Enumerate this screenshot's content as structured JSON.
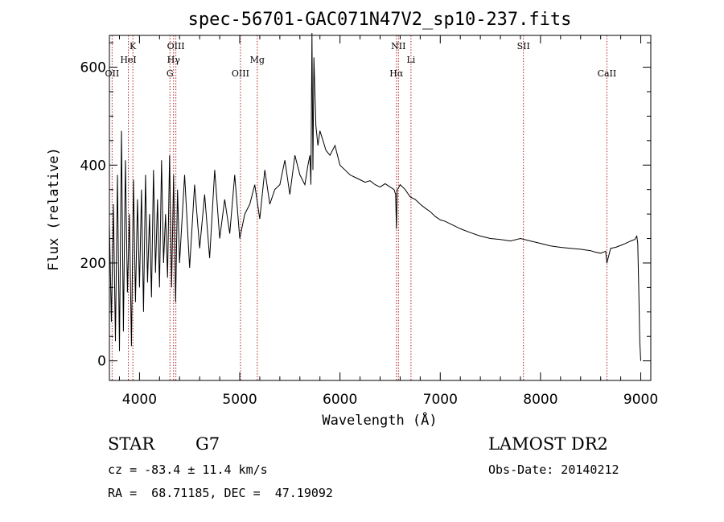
{
  "chart_data": {
    "type": "line",
    "title": "spec-56701-GAC071N47V2_sp10-237.fits",
    "xlabel": "Wavelength (Å)",
    "ylabel": "Flux (relative)",
    "xlim": [
      3700,
      9100
    ],
    "ylim": [
      -40,
      665
    ],
    "xticks": [
      4000,
      5000,
      6000,
      7000,
      8000,
      9000
    ],
    "yticks": [
      0,
      200,
      400,
      600
    ],
    "grid": false,
    "legend": "none",
    "line_color": "#000000",
    "marker_color": "#b22222",
    "spectral_lines": [
      {
        "label": "OII",
        "wavelength": 3727,
        "row": 3
      },
      {
        "label": "K",
        "wavelength": 3934,
        "row": 1
      },
      {
        "label": "HeI",
        "wavelength": 3889,
        "row": 2
      },
      {
        "label": "OIII",
        "wavelength": 4363,
        "row": 1
      },
      {
        "label": "Hγ",
        "wavelength": 4340,
        "row": 2
      },
      {
        "label": "G",
        "wavelength": 4304,
        "row": 3
      },
      {
        "label": "OIII",
        "wavelength": 5007,
        "row": 3
      },
      {
        "label": "Mg",
        "wavelength": 5175,
        "row": 2
      },
      {
        "label": "NII",
        "wavelength": 6583,
        "row": 1
      },
      {
        "label": "Li",
        "wavelength": 6708,
        "row": 2
      },
      {
        "label": "Hα",
        "wavelength": 6563,
        "row": 3
      },
      {
        "label": "SII",
        "wavelength": 7830,
        "row": 1
      },
      {
        "label": "CaII",
        "wavelength": 8662,
        "row": 3
      }
    ],
    "series": [
      {
        "x": [
          3700,
          3720,
          3740,
          3760,
          3780,
          3800,
          3820,
          3840,
          3860,
          3880,
          3900,
          3920,
          3940,
          3960,
          3980,
          4000,
          4020,
          4040,
          4060,
          4080,
          4100,
          4120,
          4140,
          4160,
          4180,
          4200,
          4220,
          4240,
          4260,
          4280,
          4300,
          4320,
          4340,
          4360,
          4380,
          4400,
          4450,
          4500,
          4550,
          4600,
          4650,
          4700,
          4750,
          4800,
          4850,
          4900,
          4950,
          5000,
          5050,
          5100,
          5150,
          5200,
          5250,
          5300,
          5350,
          5400,
          5450,
          5500,
          5550,
          5600,
          5650,
          5680,
          5700,
          5710,
          5720,
          5730,
          5740,
          5760,
          5780,
          5800,
          5830,
          5860,
          5900,
          5950,
          6000,
          6050,
          6100,
          6150,
          6200,
          6250,
          6300,
          6350,
          6400,
          6450,
          6500,
          6540,
          6555,
          6563,
          6570,
          6580,
          6600,
          6650,
          6700,
          6750,
          6800,
          6850,
          6900,
          6950,
          7000,
          7050,
          7100,
          7150,
          7200,
          7300,
          7400,
          7500,
          7600,
          7700,
          7800,
          7900,
          8000,
          8100,
          8200,
          8300,
          8400,
          8500,
          8550,
          8600,
          8650,
          8662,
          8700,
          8750,
          8800,
          8850,
          8900,
          8940,
          8960,
          8970,
          8980,
          8990,
          9000
        ],
        "y": [
          280,
          80,
          320,
          40,
          380,
          20,
          470,
          60,
          410,
          140,
          300,
          30,
          370,
          120,
          330,
          150,
          350,
          100,
          380,
          160,
          300,
          130,
          390,
          180,
          330,
          150,
          410,
          200,
          300,
          170,
          420,
          150,
          380,
          120,
          350,
          200,
          380,
          190,
          360,
          230,
          340,
          210,
          390,
          250,
          330,
          260,
          380,
          250,
          300,
          320,
          360,
          290,
          390,
          320,
          350,
          360,
          410,
          340,
          420,
          380,
          360,
          400,
          420,
          360,
          670,
          390,
          620,
          480,
          440,
          470,
          450,
          430,
          420,
          440,
          400,
          390,
          380,
          375,
          370,
          365,
          368,
          360,
          355,
          362,
          355,
          350,
          340,
          270,
          350,
          352,
          360,
          350,
          335,
          330,
          320,
          312,
          305,
          295,
          288,
          285,
          280,
          275,
          270,
          262,
          255,
          250,
          248,
          245,
          250,
          245,
          240,
          235,
          232,
          230,
          228,
          225,
          222,
          220,
          224,
          200,
          230,
          232,
          236,
          240,
          245,
          248,
          255,
          240,
          150,
          40,
          0
        ]
      }
    ]
  },
  "info": {
    "object_type": "STAR",
    "subclass": "G7",
    "survey": "LAMOST DR2",
    "cz": "cz = -83.4 ± 11.4 km/s",
    "obs_date": "Obs-Date: 20140212",
    "coords": "RA =  68.71185, DEC =  47.19092"
  }
}
